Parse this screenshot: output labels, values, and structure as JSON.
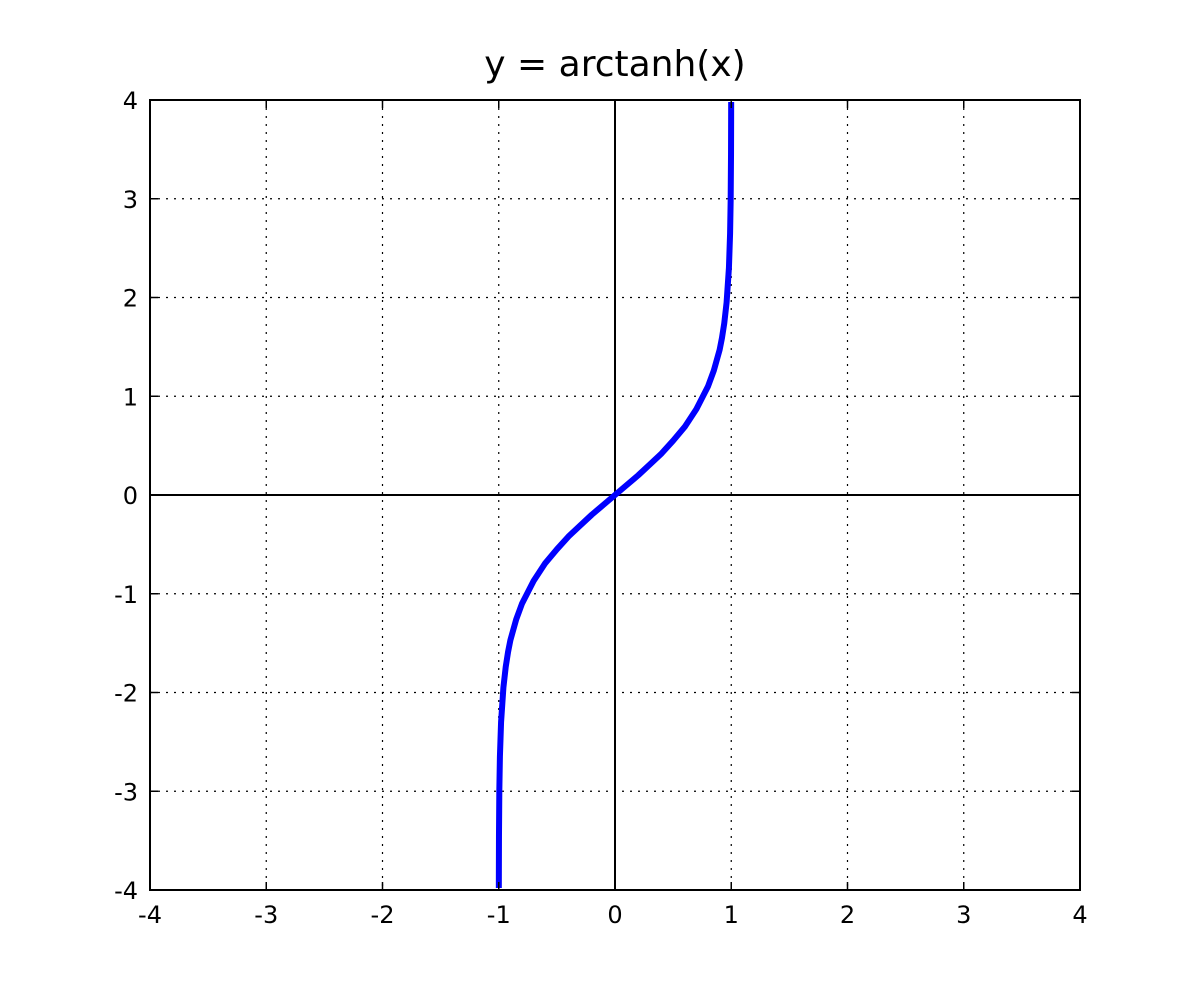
{
  "chart_data": {
    "type": "line",
    "title": "y = arctanh(x)",
    "xlabel": "",
    "ylabel": "",
    "xlim": [
      -4,
      4
    ],
    "ylim": [
      -4,
      4
    ],
    "xticks": [
      -4,
      -3,
      -2,
      -1,
      0,
      1,
      2,
      3,
      4
    ],
    "yticks": [
      -4,
      -3,
      -2,
      -1,
      0,
      1,
      2,
      3,
      4
    ],
    "xtick_labels": [
      "-4",
      "-3",
      "-2",
      "-1",
      "0",
      "1",
      "2",
      "3",
      "4"
    ],
    "ytick_labels": [
      "-4",
      "-3",
      "-2",
      "-1",
      "0",
      "1",
      "2",
      "3",
      "4"
    ],
    "grid": true,
    "series": [
      {
        "color": "#0000ff",
        "x": [
          -0.9993,
          -0.999,
          -0.998,
          -0.995,
          -0.99,
          -0.98,
          -0.96,
          -0.94,
          -0.92,
          -0.9,
          -0.85,
          -0.8,
          -0.7,
          -0.6,
          -0.5,
          -0.4,
          -0.3,
          -0.2,
          -0.1,
          0,
          0.1,
          0.2,
          0.3,
          0.4,
          0.5,
          0.6,
          0.7,
          0.8,
          0.85,
          0.9,
          0.92,
          0.94,
          0.96,
          0.98,
          0.99,
          0.995,
          0.998,
          0.999,
          0.9993
        ],
        "y": [
          -3.98,
          -3.8,
          -3.45,
          -2.99,
          -2.65,
          -2.3,
          -1.95,
          -1.74,
          -1.59,
          -1.47,
          -1.26,
          -1.1,
          -0.87,
          -0.69,
          -0.55,
          -0.42,
          -0.31,
          -0.2,
          -0.1,
          0,
          0.1,
          0.2,
          0.31,
          0.42,
          0.55,
          0.69,
          0.87,
          1.1,
          1.26,
          1.47,
          1.59,
          1.74,
          1.95,
          2.3,
          2.65,
          2.99,
          3.45,
          3.8,
          3.98
        ]
      }
    ]
  }
}
